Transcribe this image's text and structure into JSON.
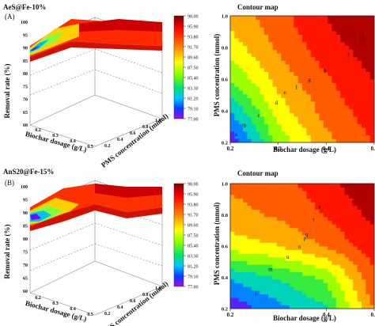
{
  "panel_a": {
    "heading": "AeS@Fe-10%",
    "letter": "(A)",
    "surface_chart": {
      "zlabel": "Removal rate (%)",
      "xlabel": "Biochar dosage (g/L)",
      "ylabel": "PMS concentration (mmol)",
      "z_ticks": [
        "60",
        "65",
        "70",
        "75",
        "80",
        "85",
        "90",
        "95",
        "100"
      ],
      "x_ticks": [
        "0.2",
        "0.3",
        "0.4",
        "0.5"
      ],
      "y_ticks": [
        "0.2",
        "0.4",
        "0.6",
        "0.8",
        "1.0"
      ]
    },
    "colorbar": {
      "levels": [
        "98.00",
        "95.90",
        "93.80",
        "91.70",
        "89.60",
        "87.50",
        "85.40",
        "83.30",
        "81.20",
        "79.10",
        "77.00"
      ]
    },
    "contour_chart": {
      "title": "Contour map",
      "xlabel": "Biochar dosage (g/L)",
      "ylabel": "PMS concentration (mmol)",
      "x_ticks": [
        "0.2",
        "0.3",
        "0.4",
        "0.5"
      ],
      "y_ticks": [
        "0.2",
        "0.4",
        "0.6",
        "0.8",
        "1.0"
      ],
      "contour_labels": [
        "a",
        "b",
        "c",
        "d",
        "e",
        "f",
        "g",
        "h",
        "i",
        "j"
      ]
    }
  },
  "panel_b": {
    "heading": "AnS20@Fe-15%",
    "letter": "(B)",
    "surface_chart": {
      "zlabel": "Removal rate (%)",
      "xlabel": "Biochar dosage (g/L)",
      "ylabel": "PMS concentration (mmol)",
      "z_ticks": [
        "60",
        "65",
        "70",
        "75",
        "80",
        "85",
        "90",
        "95",
        "100"
      ],
      "x_ticks": [
        "0.2",
        "0.3",
        "0.4",
        "0.5"
      ],
      "y_ticks": [
        "0.2",
        "0.4",
        "0.6",
        "0.8",
        "1.0"
      ]
    },
    "colorbar": {
      "levels": [
        "98.00",
        "95.90",
        "93.80",
        "91.70",
        "89.60",
        "87.50",
        "85.40",
        "83.30",
        "81.20",
        "79.10",
        "77.00"
      ]
    },
    "contour_chart": {
      "title": "Contour map",
      "xlabel": "Biochar dosage (g/L)",
      "ylabel": "PMS concentration (mmol)",
      "x_ticks": [
        "0.2",
        "0.4",
        "0.5"
      ],
      "y_ticks": [
        "0.2",
        "0.4",
        "0.6",
        "0.8",
        "1.0"
      ],
      "contour_labels": [
        "l",
        "m",
        "n",
        "o",
        "p",
        "q",
        "r",
        "s",
        "t"
      ]
    }
  },
  "chart_data": [
    {
      "type": "heatmap",
      "title": "Contour map",
      "xlabel": "Biochar dosage (g/L)",
      "ylabel": "PMS concentration (mmol)",
      "xlim": [
        0.2,
        0.5
      ],
      "ylim": [
        0.2,
        1.0
      ],
      "zlim": [
        77.0,
        98.0
      ],
      "x": [
        0.2,
        0.3,
        0.4,
        0.5
      ],
      "y": [
        0.2,
        0.4,
        0.6,
        0.8,
        1.0
      ],
      "z": [
        [
          77.5,
          86.0,
          91.0,
          94.0
        ],
        [
          81.0,
          88.5,
          92.5,
          95.0
        ],
        [
          85.5,
          90.5,
          93.5,
          96.0
        ],
        [
          88.5,
          92.0,
          95.0,
          97.0
        ],
        [
          90.5,
          93.0,
          96.0,
          98.0
        ]
      ]
    },
    {
      "type": "heatmap",
      "title": "Contour map",
      "xlabel": "Biochar dosage (g/L)",
      "ylabel": "PMS concentration (mmol)",
      "xlim": [
        0.2,
        0.5
      ],
      "ylim": [
        0.2,
        1.0
      ],
      "zlim": [
        77.0,
        98.0
      ],
      "x": [
        0.2,
        0.3,
        0.4,
        0.5
      ],
      "y": [
        0.2,
        0.4,
        0.6,
        0.8,
        1.0
      ],
      "z": [
        [
          77.5,
          80.5,
          83.0,
          92.0
        ],
        [
          81.5,
          83.5,
          86.0,
          93.5
        ],
        [
          88.5,
          89.5,
          92.0,
          95.0
        ],
        [
          91.0,
          92.0,
          94.0,
          96.5
        ],
        [
          92.0,
          93.0,
          95.0,
          98.0
        ]
      ]
    }
  ]
}
